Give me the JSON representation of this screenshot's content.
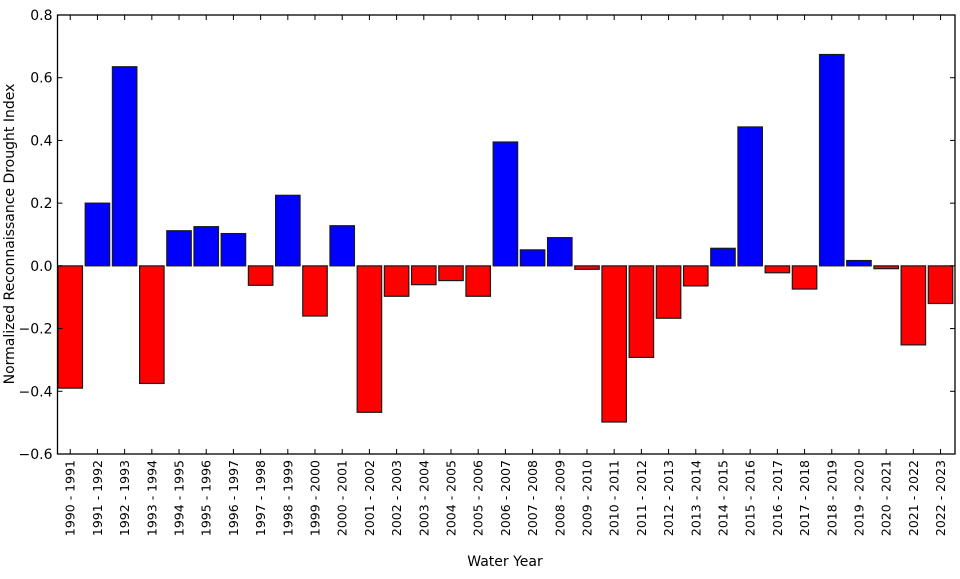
{
  "chart_data": {
    "type": "bar",
    "title": "",
    "xlabel": "Water Year",
    "ylabel": "Normalized Reconnaissance Drought Index",
    "ylim": [
      -0.6,
      0.8
    ],
    "yticks": [
      -0.6,
      -0.4,
      -0.2,
      0.0,
      0.2,
      0.4,
      0.6,
      0.8
    ],
    "ytick_labels": [
      "−0.6",
      "−0.4",
      "−0.2",
      "0.0",
      "0.2",
      "0.4",
      "0.6",
      "0.8"
    ],
    "grid": false,
    "legend": null,
    "colors": {
      "positive": "#0000ff",
      "negative": "#ff0000",
      "edge": "#1a1a1a",
      "axis": "#000000"
    },
    "categories": [
      "1990 - 1991",
      "1991 - 1992",
      "1992 - 1993",
      "1993 - 1994",
      "1994 - 1995",
      "1995 - 1996",
      "1996 - 1997",
      "1997 - 1998",
      "1998 - 1999",
      "1999 - 2000",
      "2000 - 2001",
      "2001 - 2002",
      "2002 - 2003",
      "2003 - 2004",
      "2004 - 2005",
      "2005 - 2006",
      "2006 - 2007",
      "2007 - 2008",
      "2008 - 2009",
      "2009 - 2010",
      "2010 - 2011",
      "2011 - 2012",
      "2012 - 2013",
      "2013 - 2014",
      "2014 - 2015",
      "2015 - 2016",
      "2016 - 2017",
      "2017 - 2018",
      "2018 - 2019",
      "2019 - 2020",
      "2020 - 2021",
      "2021 - 2022",
      "2022 - 2023"
    ],
    "values": [
      -0.39,
      0.2,
      0.635,
      -0.375,
      0.112,
      0.125,
      0.103,
      -0.062,
      0.225,
      -0.16,
      0.128,
      -0.467,
      -0.097,
      -0.06,
      -0.047,
      -0.097,
      0.395,
      0.051,
      0.09,
      -0.011,
      -0.498,
      -0.292,
      -0.167,
      -0.064,
      0.056,
      0.443,
      -0.022,
      -0.074,
      0.674,
      0.017,
      -0.009,
      -0.252,
      -0.12
    ]
  }
}
